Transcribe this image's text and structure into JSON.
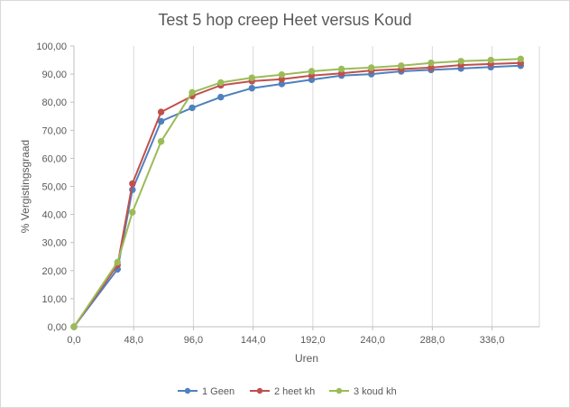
{
  "chart_data": {
    "type": "line",
    "title": "Test 5 hop creep Heet versus Koud",
    "xlabel": "Uren",
    "ylabel": "% Vergistingsgraad",
    "xlim": [
      0,
      374
    ],
    "ylim": [
      0,
      100
    ],
    "x_ticks": [
      0,
      48,
      96,
      144,
      192,
      240,
      288,
      336
    ],
    "x_tick_labels": [
      "0,0",
      "48,0",
      "96,0",
      "144,0",
      "192,0",
      "240,0",
      "288,0",
      "336,0"
    ],
    "y_ticks": [
      0,
      10,
      20,
      30,
      40,
      50,
      60,
      70,
      80,
      90,
      100
    ],
    "y_tick_labels": [
      "0,00",
      "10,00",
      "20,00",
      "30,00",
      "40,00",
      "50,00",
      "60,00",
      "70,00",
      "80,00",
      "90,00",
      "100,00"
    ],
    "grid": "vertical",
    "legend_position": "bottom",
    "series": [
      {
        "name": "1 Geen",
        "color": "#4f81bd",
        "x": [
          0,
          35,
          47,
          70,
          95,
          118,
          143,
          167,
          191,
          215,
          239,
          263,
          287,
          311,
          335,
          359
        ],
        "y": [
          0,
          20.5,
          48.8,
          73.2,
          78.0,
          81.8,
          85.0,
          86.5,
          88.0,
          89.5,
          90.0,
          91.0,
          91.5,
          92.0,
          92.5,
          93.0
        ]
      },
      {
        "name": "2 heet kh",
        "color": "#c0504d",
        "x": [
          0,
          35,
          47,
          70,
          95,
          118,
          143,
          167,
          191,
          215,
          239,
          263,
          287,
          311,
          335,
          359
        ],
        "y": [
          0,
          22.0,
          51.0,
          76.5,
          82.2,
          86.0,
          87.5,
          88.2,
          89.5,
          90.3,
          91.3,
          91.8,
          92.3,
          93.2,
          93.6,
          94.0
        ]
      },
      {
        "name": "3 koud kh",
        "color": "#9bbb59",
        "x": [
          0,
          35,
          47,
          70,
          95,
          118,
          143,
          167,
          191,
          215,
          239,
          263,
          287,
          311,
          335,
          359
        ],
        "y": [
          0,
          23.0,
          40.8,
          66.0,
          83.5,
          87.0,
          88.7,
          89.8,
          91.0,
          91.8,
          92.3,
          93.0,
          94.0,
          94.6,
          95.0,
          95.4
        ]
      }
    ]
  }
}
